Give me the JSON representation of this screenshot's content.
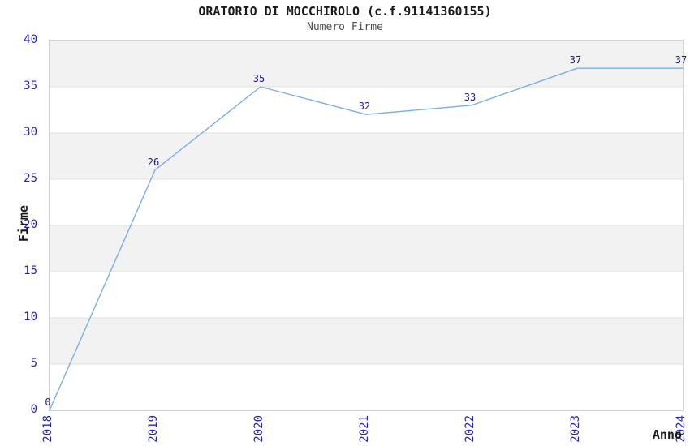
{
  "title": "ORATORIO DI MOCCHIROLO (c.f.91141360155)",
  "subtitle": "Numero Firme",
  "chart_data": {
    "type": "line",
    "x": [
      2018,
      2019,
      2020,
      2021,
      2022,
      2023,
      2024
    ],
    "values": [
      0,
      26,
      35,
      32,
      33,
      37,
      37
    ],
    "title": "ORATORIO DI MOCCHIROLO (c.f.91141360155)",
    "subtitle": "Numero Firme",
    "xlabel": "Anno",
    "ylabel": "Firme",
    "ylim": [
      0,
      40
    ],
    "ytick_step": 5,
    "yticks": [
      0,
      5,
      10,
      15,
      20,
      25,
      30,
      35,
      40
    ],
    "grid": "horizontal-bands-alternating",
    "legend": "none",
    "point_labels_shown": true,
    "colors": {
      "line": "#7dade6",
      "tick_label": "#2222cc",
      "data_label": "#1a1a8c",
      "band_gray": "#f2f2f2",
      "band_white": "#ffffff",
      "grid_line": "#e0e0e0",
      "plot_border": "#d2d2d2",
      "title": "#1a1a1a",
      "subtitle": "#4d4d4d",
      "axis_title": "#1a1a1a"
    }
  }
}
